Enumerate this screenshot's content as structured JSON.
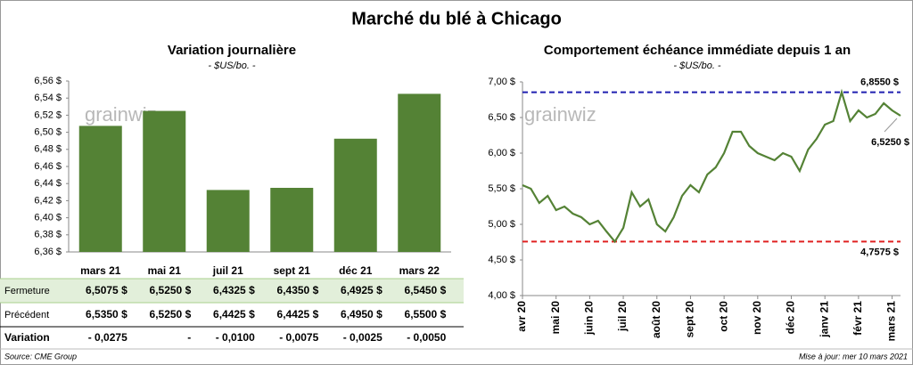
{
  "title": "Marché du blé à Chicago",
  "watermark": "grainwiz",
  "chart_data": [
    {
      "type": "bar",
      "title": "Variation journalière",
      "subtitle": "- $US/bo. -",
      "categories": [
        "mars 21",
        "mai 21",
        "juil 21",
        "sept 21",
        "déc 21",
        "mars 22"
      ],
      "values": [
        6.5075,
        6.525,
        6.4325,
        6.435,
        6.4925,
        6.545
      ],
      "color": "#548235",
      "ylim": [
        6.36,
        6.56
      ],
      "yticks": [
        {
          "value": 6.36,
          "label": "6,36 $"
        },
        {
          "value": 6.38,
          "label": "6,38 $"
        },
        {
          "value": 6.4,
          "label": "6,40 $"
        },
        {
          "value": 6.42,
          "label": "6,42 $"
        },
        {
          "value": 6.44,
          "label": "6,44 $"
        },
        {
          "value": 6.46,
          "label": "6,46 $"
        },
        {
          "value": 6.48,
          "label": "6,48 $"
        },
        {
          "value": 6.5,
          "label": "6,50 $"
        },
        {
          "value": 6.52,
          "label": "6,52 $"
        },
        {
          "value": 6.54,
          "label": "6,54 $"
        },
        {
          "value": 6.56,
          "label": "6,56 $"
        }
      ]
    },
    {
      "type": "line",
      "title": "Comportement  échéance immédiate depuis 1 an",
      "subtitle": "- $US/bo. -",
      "categories": [
        "avr 20",
        null,
        null,
        null,
        "mai 20",
        null,
        null,
        null,
        "juin 20",
        null,
        null,
        null,
        "juil 20",
        null,
        null,
        null,
        "août 20",
        null,
        null,
        null,
        "sept 20",
        null,
        null,
        null,
        "oct 20",
        null,
        null,
        null,
        "nov 20",
        null,
        null,
        null,
        "déc 20",
        null,
        null,
        null,
        "janv 21",
        null,
        null,
        null,
        "févr 21",
        null,
        null,
        null,
        "mars 21",
        null
      ],
      "values": [
        5.55,
        5.5,
        5.3,
        5.4,
        5.2,
        5.25,
        5.15,
        5.1,
        5.0,
        5.05,
        4.9,
        4.7575,
        4.95,
        5.45,
        5.25,
        5.35,
        5.0,
        4.9,
        5.1,
        5.4,
        5.55,
        5.45,
        5.7,
        5.8,
        6.0,
        6.3,
        6.3,
        6.1,
        6.0,
        5.95,
        5.9,
        6.0,
        5.95,
        5.75,
        6.05,
        6.2,
        6.4,
        6.45,
        6.855,
        6.45,
        6.6,
        6.5,
        6.55,
        6.7,
        6.6,
        6.525
      ],
      "color": "#548235",
      "ylim": [
        4.0,
        7.0
      ],
      "yticks": [
        {
          "value": 4.0,
          "label": "4,00 $"
        },
        {
          "value": 4.5,
          "label": "4,50 $"
        },
        {
          "value": 5.0,
          "label": "5,00 $"
        },
        {
          "value": 5.5,
          "label": "5,50 $"
        },
        {
          "value": 6.0,
          "label": "6,00 $"
        },
        {
          "value": 6.5,
          "label": "6,50 $"
        },
        {
          "value": 7.0,
          "label": "7,00 $"
        }
      ],
      "annotations": [
        {
          "label": "6,8550 $",
          "value": 6.855,
          "color": "#2020b0"
        },
        {
          "label": "4,7575 $",
          "value": 4.7575,
          "color": "#e02020"
        }
      ],
      "last_label": "6,5250 $"
    }
  ],
  "table": {
    "rows": [
      {
        "label": "Fermeture",
        "cells": [
          "6,5075  $",
          "6,5250  $",
          "6,4325  $",
          "6,4350  $",
          "6,4925  $",
          "6,5450  $"
        ]
      },
      {
        "label": "Précédent",
        "cells": [
          "6,5350  $",
          "6,5250  $",
          "6,4425  $",
          "6,4425  $",
          "6,4950  $",
          "6,5500  $"
        ]
      },
      {
        "label": "Variation",
        "cells": [
          "- 0,0275",
          "-",
          "- 0,0100",
          "- 0,0075",
          "- 0,0025",
          "- 0,0050"
        ]
      }
    ]
  },
  "source": "Source: CME Group",
  "updated": "Mise à jour: mer 10 mars 2021"
}
